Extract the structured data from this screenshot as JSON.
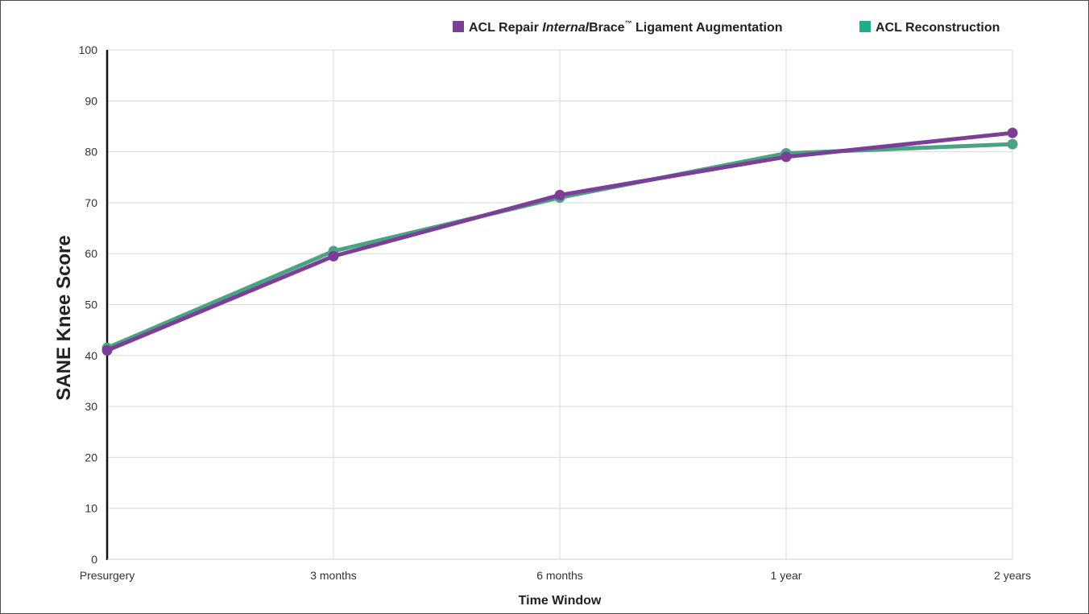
{
  "chart_data": {
    "type": "line",
    "categories": [
      "Presurgery",
      "3 months",
      "6 months",
      "1 year",
      "2 years"
    ],
    "series": [
      {
        "name_parts": [
          "ACL Repair ",
          "Internal",
          "Brace",
          "™",
          " Ligament Augmentation"
        ],
        "color": "#7b3f98",
        "values": [
          41,
          59.5,
          71.5,
          79,
          83.7
        ]
      },
      {
        "name": "ACL Reconstruction",
        "color": "#4aa382",
        "values": [
          41.5,
          60.5,
          71,
          79.7,
          81.5
        ]
      }
    ],
    "legend_colors": [
      "#7b3f98",
      "#1fae8c"
    ],
    "xlabel": "Time Window",
    "ylabel": "SANE Knee Score",
    "ylim": [
      0,
      100
    ],
    "yticks": [
      0,
      10,
      20,
      30,
      40,
      50,
      60,
      70,
      80,
      90,
      100
    ],
    "grid": true,
    "legend_position": "top-right"
  }
}
